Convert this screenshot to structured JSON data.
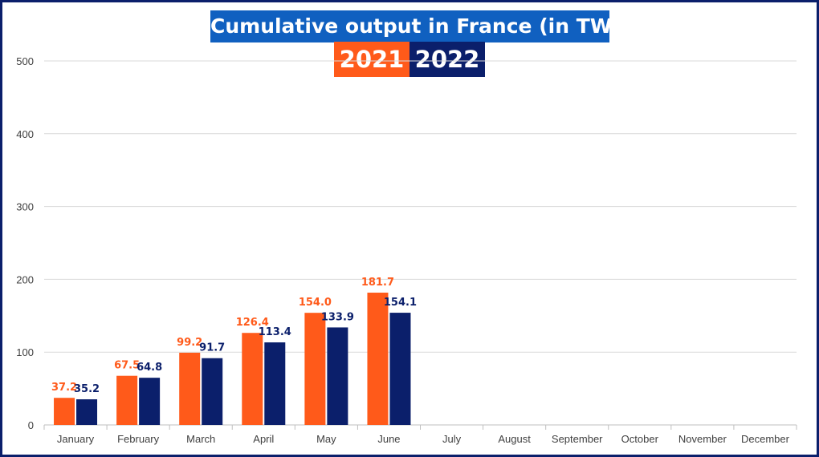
{
  "chart_data": {
    "type": "bar",
    "title": "Cumulative output in France (in TWh)",
    "categories": [
      "January",
      "February",
      "March",
      "April",
      "May",
      "June",
      "July",
      "August",
      "September",
      "October",
      "November",
      "December"
    ],
    "series": [
      {
        "name": "2021",
        "color": "#ff5a1a",
        "values": [
          37.2,
          67.5,
          99.2,
          126.4,
          154.0,
          181.7,
          null,
          null,
          null,
          null,
          null,
          null
        ],
        "labels": [
          "37.2",
          "67.5",
          "99.2",
          "126.4",
          "154.0",
          "181.7"
        ]
      },
      {
        "name": "2022",
        "color": "#0b1f6b",
        "values": [
          35.2,
          64.8,
          91.7,
          113.4,
          133.9,
          154.1,
          null,
          null,
          null,
          null,
          null,
          null
        ],
        "labels": [
          "35.2",
          "64.8",
          "91.7",
          "113.4",
          "133.9",
          "154.1"
        ]
      }
    ],
    "yticks": [
      "0",
      "100",
      "200",
      "300",
      "400",
      "500"
    ],
    "ylim": [
      0,
      500
    ],
    "grid": true,
    "legend_placement": "top-center",
    "colors": {
      "title_bg": "#1060c0",
      "frame": "#0b1f6b",
      "grid": "#d9d9d9",
      "axis_text": "#404040"
    }
  }
}
